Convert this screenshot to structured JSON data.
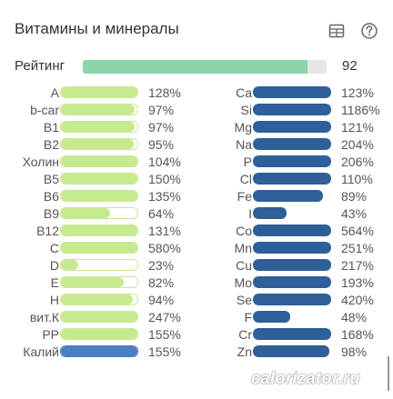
{
  "header": {
    "title": "Витамины и минералы",
    "table_icon": "table-icon",
    "help_icon": "help-circle-icon"
  },
  "rating": {
    "label": "Рейтинг",
    "value": "92",
    "percent": 92
  },
  "colors": {
    "vitamin_fill": "#c7ea8f",
    "vitamin_border": "#bfe18b",
    "mineral_fill": "#2e5f98",
    "potassium_fill": "#4a7fc1",
    "rating_fill": "#8cd4a9"
  },
  "vitamins": [
    {
      "label": "A",
      "value": "128%",
      "percent": 128
    },
    {
      "label": "b-car",
      "value": "97%",
      "percent": 97
    },
    {
      "label": "B1",
      "value": "97%",
      "percent": 97
    },
    {
      "label": "B2",
      "value": "95%",
      "percent": 95
    },
    {
      "label": "Холин",
      "value": "104%",
      "percent": 104
    },
    {
      "label": "B5",
      "value": "150%",
      "percent": 150
    },
    {
      "label": "B6",
      "value": "135%",
      "percent": 135
    },
    {
      "label": "B9",
      "value": "64%",
      "percent": 64
    },
    {
      "label": "B12",
      "value": "131%",
      "percent": 131
    },
    {
      "label": "C",
      "value": "580%",
      "percent": 580
    },
    {
      "label": "D",
      "value": "23%",
      "percent": 23
    },
    {
      "label": "E",
      "value": "82%",
      "percent": 82
    },
    {
      "label": "H",
      "value": "94%",
      "percent": 94
    },
    {
      "label": "вит.К",
      "value": "247%",
      "percent": 247
    },
    {
      "label": "PP",
      "value": "155%",
      "percent": 155
    },
    {
      "label": "Калий",
      "value": "155%",
      "percent": 155
    }
  ],
  "minerals": [
    {
      "label": "Ca",
      "value": "123%",
      "percent": 123
    },
    {
      "label": "Si",
      "value": "1186%",
      "percent": 1186
    },
    {
      "label": "Mg",
      "value": "121%",
      "percent": 121
    },
    {
      "label": "Na",
      "value": "204%",
      "percent": 204
    },
    {
      "label": "P",
      "value": "206%",
      "percent": 206
    },
    {
      "label": "Cl",
      "value": "110%",
      "percent": 110
    },
    {
      "label": "Fe",
      "value": "89%",
      "percent": 89
    },
    {
      "label": "I",
      "value": "43%",
      "percent": 43
    },
    {
      "label": "Co",
      "value": "564%",
      "percent": 564
    },
    {
      "label": "Mn",
      "value": "251%",
      "percent": 251
    },
    {
      "label": "Cu",
      "value": "217%",
      "percent": 217
    },
    {
      "label": "Mo",
      "value": "193%",
      "percent": 193
    },
    {
      "label": "Se",
      "value": "420%",
      "percent": 420
    },
    {
      "label": "F",
      "value": "48%",
      "percent": 48
    },
    {
      "label": "Cr",
      "value": "168%",
      "percent": 168
    },
    {
      "label": "Zn",
      "value": "98%",
      "percent": 98
    }
  ],
  "watermark": {
    "text": "calorizator.ru"
  }
}
